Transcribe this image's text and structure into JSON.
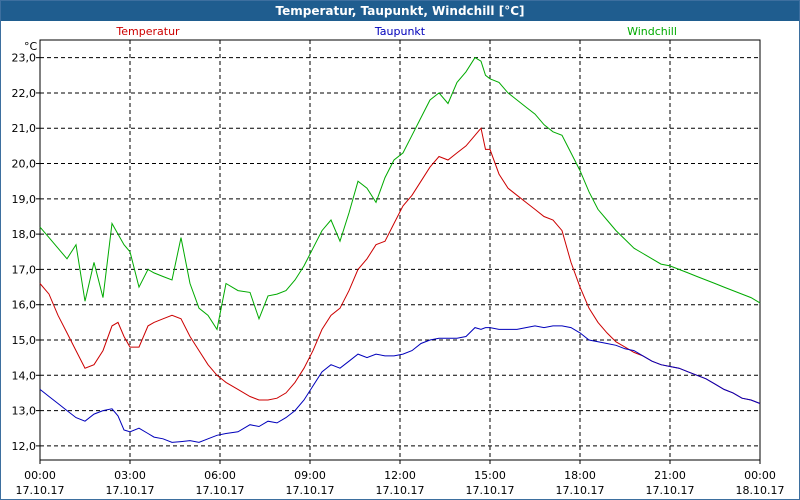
{
  "window": {
    "title": "Temperatur, Taupunkt, Windchill [°C]"
  },
  "chart_data": {
    "type": "line",
    "title": "Temperatur, Taupunkt, Windchill [°C]",
    "ylabel": "°C",
    "ylim": [
      11.6,
      23.5
    ],
    "yticks": [
      "23,0",
      "22,0",
      "21,0",
      "20,0",
      "19,0",
      "18,0",
      "17,0",
      "16,0",
      "15,0",
      "14,0",
      "13,0",
      "12,0"
    ],
    "ytick_values": [
      23,
      22,
      21,
      20,
      19,
      18,
      17,
      16,
      15,
      14,
      13,
      12
    ],
    "xlim": [
      0,
      24
    ],
    "x_hours": [
      0,
      3,
      6,
      9,
      12,
      15,
      18,
      21,
      24
    ],
    "xtick_times": [
      "00:00",
      "03:00",
      "06:00",
      "09:00",
      "12:00",
      "15:00",
      "18:00",
      "21:00",
      "00:00"
    ],
    "xtick_dates": [
      "17.10.17",
      "17.10.17",
      "17.10.17",
      "17.10.17",
      "17.10.17",
      "17.10.17",
      "17.10.17",
      "17.10.17",
      "18.10.17"
    ],
    "grid": true,
    "legend_position": "top",
    "series": [
      {
        "name": "Temperatur",
        "color": "#cc0000",
        "x": [
          0,
          0.3,
          0.6,
          0.9,
          1.2,
          1.5,
          1.8,
          2.1,
          2.4,
          2.6,
          2.8,
          3.0,
          3.3,
          3.6,
          3.8,
          4.1,
          4.4,
          4.7,
          5.0,
          5.3,
          5.6,
          5.9,
          6.2,
          6.6,
          7.0,
          7.3,
          7.6,
          7.9,
          8.2,
          8.5,
          8.8,
          9.1,
          9.4,
          9.7,
          10.0,
          10.3,
          10.6,
          10.9,
          11.2,
          11.5,
          11.8,
          12.1,
          12.4,
          12.7,
          13.0,
          13.3,
          13.6,
          13.9,
          14.2,
          14.5,
          14.7,
          14.85,
          15.0,
          15.3,
          15.6,
          15.9,
          16.2,
          16.5,
          16.8,
          17.1,
          17.4,
          17.7,
          18.0,
          18.3,
          18.6,
          18.9,
          19.2,
          19.5,
          19.8,
          20.1,
          20.4,
          20.7,
          21.0,
          21.3,
          21.6,
          21.9,
          22.2,
          22.5,
          22.8,
          23.1,
          23.4,
          23.7,
          24.0
        ],
        "values": [
          16.6,
          16.3,
          15.7,
          15.2,
          14.7,
          14.2,
          14.3,
          14.7,
          15.4,
          15.5,
          15.1,
          14.8,
          14.8,
          15.4,
          15.5,
          15.6,
          15.7,
          15.6,
          15.1,
          14.7,
          14.3,
          14.0,
          13.8,
          13.6,
          13.4,
          13.3,
          13.3,
          13.35,
          13.5,
          13.8,
          14.2,
          14.7,
          15.3,
          15.7,
          15.9,
          16.4,
          17.0,
          17.3,
          17.7,
          17.8,
          18.3,
          18.8,
          19.1,
          19.5,
          19.9,
          20.2,
          20.1,
          20.3,
          20.5,
          20.8,
          21.0,
          20.4,
          20.4,
          19.7,
          19.3,
          19.1,
          18.9,
          18.7,
          18.5,
          18.4,
          18.1,
          17.2,
          16.5,
          15.9,
          15.5,
          15.2,
          14.95,
          14.8,
          14.65,
          14.55,
          14.4,
          14.3,
          14.25,
          14.2,
          14.1,
          14.0,
          13.9,
          13.75,
          13.6,
          13.5,
          13.35,
          13.3,
          13.2
        ]
      },
      {
        "name": "Taupunkt",
        "color": "#0000bb",
        "x": [
          0,
          0.3,
          0.6,
          0.9,
          1.2,
          1.5,
          1.8,
          2.1,
          2.4,
          2.6,
          2.8,
          3.0,
          3.3,
          3.6,
          3.8,
          4.1,
          4.4,
          4.7,
          5.0,
          5.3,
          5.6,
          5.9,
          6.2,
          6.6,
          7.0,
          7.3,
          7.6,
          7.9,
          8.2,
          8.5,
          8.8,
          9.1,
          9.4,
          9.7,
          10.0,
          10.3,
          10.6,
          10.9,
          11.2,
          11.5,
          11.8,
          12.1,
          12.4,
          12.7,
          13.0,
          13.3,
          13.6,
          13.9,
          14.2,
          14.5,
          14.7,
          14.85,
          15.0,
          15.3,
          15.6,
          15.9,
          16.2,
          16.5,
          16.8,
          17.1,
          17.4,
          17.7,
          18.0,
          18.3,
          18.6,
          18.9,
          19.2,
          19.5,
          19.8,
          20.1,
          20.4,
          20.7,
          21.0,
          21.3,
          21.6,
          21.9,
          22.2,
          22.5,
          22.8,
          23.1,
          23.4,
          23.7,
          24.0
        ],
        "values": [
          13.6,
          13.4,
          13.2,
          13.0,
          12.8,
          12.7,
          12.9,
          13.0,
          13.05,
          12.85,
          12.45,
          12.4,
          12.5,
          12.35,
          12.25,
          12.2,
          12.1,
          12.12,
          12.15,
          12.1,
          12.2,
          12.3,
          12.35,
          12.4,
          12.6,
          12.55,
          12.7,
          12.65,
          12.8,
          13.0,
          13.3,
          13.7,
          14.1,
          14.3,
          14.2,
          14.4,
          14.6,
          14.5,
          14.6,
          14.55,
          14.55,
          14.6,
          14.7,
          14.9,
          15.0,
          15.05,
          15.05,
          15.05,
          15.1,
          15.35,
          15.3,
          15.35,
          15.35,
          15.3,
          15.3,
          15.3,
          15.35,
          15.4,
          15.35,
          15.4,
          15.4,
          15.35,
          15.2,
          15.0,
          14.95,
          14.9,
          14.85,
          14.75,
          14.7,
          14.55,
          14.4,
          14.3,
          14.25,
          14.2,
          14.1,
          14.0,
          13.9,
          13.75,
          13.6,
          13.5,
          13.35,
          13.3,
          13.2
        ]
      },
      {
        "name": "Windchill",
        "color": "#00aa00",
        "x": [
          0,
          0.3,
          0.6,
          0.9,
          1.2,
          1.5,
          1.8,
          2.1,
          2.4,
          2.6,
          2.8,
          3.0,
          3.3,
          3.6,
          3.8,
          4.1,
          4.4,
          4.7,
          5.0,
          5.3,
          5.6,
          5.9,
          6.2,
          6.6,
          7.0,
          7.3,
          7.6,
          7.9,
          8.2,
          8.5,
          8.8,
          9.1,
          9.4,
          9.7,
          10.0,
          10.3,
          10.6,
          10.9,
          11.2,
          11.5,
          11.8,
          12.1,
          12.4,
          12.7,
          13.0,
          13.3,
          13.6,
          13.9,
          14.2,
          14.5,
          14.7,
          14.85,
          15.0,
          15.3,
          15.6,
          15.9,
          16.2,
          16.5,
          16.8,
          17.1,
          17.4,
          17.7,
          18.0,
          18.3,
          18.6,
          18.9,
          19.2,
          19.5,
          19.8,
          20.1,
          20.4,
          20.7,
          21.0,
          21.3,
          21.6,
          21.9,
          22.2,
          22.5,
          22.8,
          23.1,
          23.4,
          23.7,
          24.0
        ],
        "values": [
          18.2,
          17.9,
          17.6,
          17.3,
          17.7,
          16.1,
          17.2,
          16.2,
          18.3,
          18.0,
          17.7,
          17.5,
          16.5,
          17.0,
          16.9,
          16.8,
          16.7,
          17.9,
          16.6,
          15.9,
          15.7,
          15.3,
          16.6,
          16.4,
          16.35,
          15.6,
          16.25,
          16.3,
          16.4,
          16.7,
          17.1,
          17.6,
          18.1,
          18.4,
          17.8,
          18.6,
          19.5,
          19.3,
          18.9,
          19.6,
          20.1,
          20.3,
          20.8,
          21.3,
          21.8,
          22.0,
          21.7,
          22.3,
          22.6,
          23.0,
          22.9,
          22.5,
          22.4,
          22.3,
          22.0,
          21.8,
          21.6,
          21.4,
          21.1,
          20.9,
          20.8,
          20.3,
          19.8,
          19.2,
          18.7,
          18.4,
          18.1,
          17.85,
          17.6,
          17.45,
          17.3,
          17.15,
          17.1,
          17.0,
          16.9,
          16.8,
          16.7,
          16.6,
          16.5,
          16.4,
          16.3,
          16.2,
          16.05
        ]
      }
    ]
  }
}
